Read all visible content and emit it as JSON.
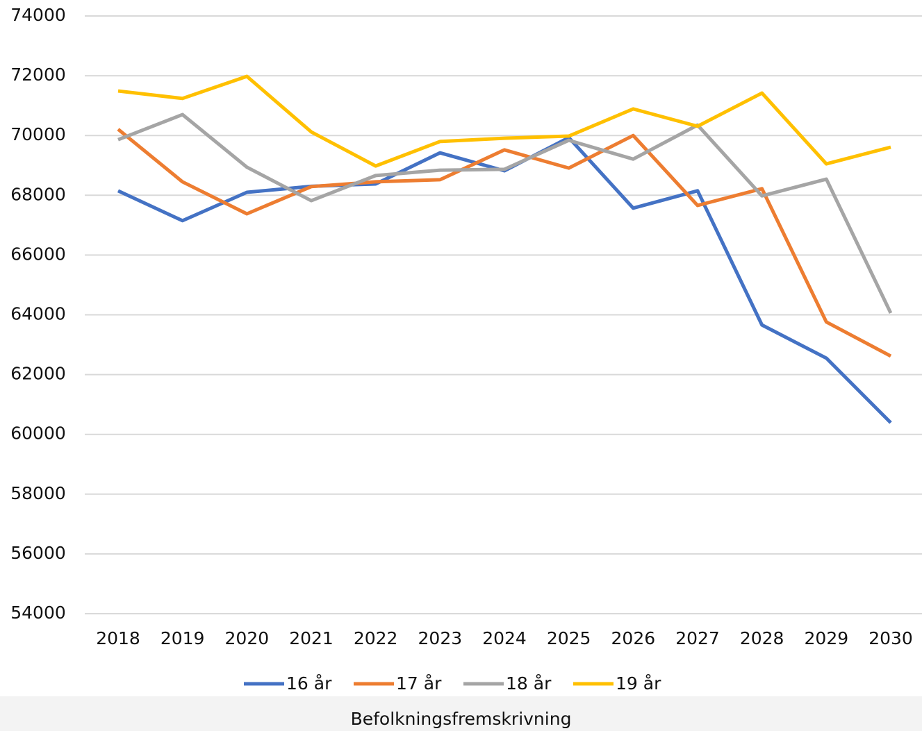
{
  "chart_data": {
    "type": "line",
    "categories": [
      "2018",
      "2019",
      "2020",
      "2021",
      "2022",
      "2023",
      "2024",
      "2025",
      "2026",
      "2027",
      "2028",
      "2029",
      "2030"
    ],
    "series": [
      {
        "name": "16 år",
        "color": "#4472c4",
        "values": [
          68150,
          67150,
          68100,
          68300,
          68380,
          69420,
          68820,
          69930,
          67570,
          68150,
          63660,
          62550,
          60390
        ]
      },
      {
        "name": "17 år",
        "color": "#ed7d31",
        "values": [
          70210,
          68450,
          67380,
          68290,
          68450,
          68520,
          69520,
          68910,
          70000,
          67660,
          68220,
          63760,
          62620
        ]
      },
      {
        "name": "18 år",
        "color": "#a5a5a5",
        "values": [
          69860,
          70700,
          68940,
          67820,
          68660,
          68840,
          68870,
          69840,
          69210,
          70350,
          67980,
          68540,
          64060
        ]
      },
      {
        "name": "19 år",
        "color": "#ffc000",
        "values": [
          71490,
          71240,
          71980,
          70120,
          68980,
          69800,
          69910,
          69980,
          70890,
          70310,
          71420,
          69050,
          69610
        ]
      }
    ],
    "ylim": [
      54000,
      74000
    ],
    "yticks": [
      54000,
      56000,
      58000,
      60000,
      62000,
      64000,
      66000,
      68000,
      70000,
      72000,
      74000
    ],
    "grid": true,
    "legend": "bottom"
  },
  "caption": "Befolkningsfremskrivning"
}
